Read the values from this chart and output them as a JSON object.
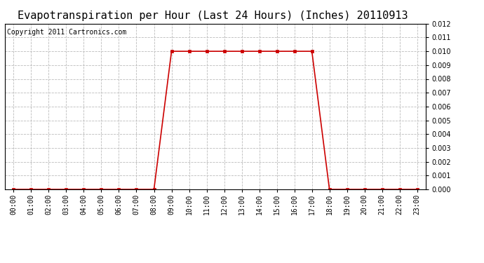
{
  "title": "Evapotranspiration per Hour (Last 24 Hours) (Inches) 20110913",
  "copyright": "Copyright 2011 Cartronics.com",
  "hours": [
    "00:00",
    "01:00",
    "02:00",
    "03:00",
    "04:00",
    "05:00",
    "06:00",
    "07:00",
    "08:00",
    "09:00",
    "10:00",
    "11:00",
    "12:00",
    "13:00",
    "14:00",
    "15:00",
    "16:00",
    "17:00",
    "18:00",
    "19:00",
    "20:00",
    "21:00",
    "22:00",
    "23:00"
  ],
  "values": [
    0.0,
    0.0,
    0.0,
    0.0,
    0.0,
    0.0,
    0.0,
    0.0,
    0.0,
    0.01,
    0.01,
    0.01,
    0.01,
    0.01,
    0.01,
    0.01,
    0.01,
    0.01,
    0.0,
    0.0,
    0.0,
    0.0,
    0.0,
    0.0
  ],
  "line_color": "#cc0000",
  "marker": "s",
  "marker_size": 3,
  "ylim": [
    0.0,
    0.012
  ],
  "ytick_step": 0.001,
  "grid_color": "#bbbbbb",
  "grid_linestyle": "--",
  "bg_color": "#ffffff",
  "title_fontsize": 11,
  "copyright_fontsize": 7,
  "tick_fontsize": 7
}
